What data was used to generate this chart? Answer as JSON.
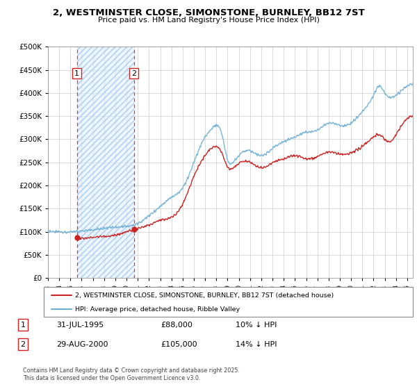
{
  "title": "2, WESTMINSTER CLOSE, SIMONSTONE, BURNLEY, BB12 7ST",
  "subtitle": "Price paid vs. HM Land Registry's House Price Index (HPI)",
  "legend_line1": "2, WESTMINSTER CLOSE, SIMONSTONE, BURNLEY, BB12 7ST (detached house)",
  "legend_line2": "HPI: Average price, detached house, Ribble Valley",
  "footnote": "Contains HM Land Registry data © Crown copyright and database right 2025.\nThis data is licensed under the Open Government Licence v3.0.",
  "sale1_label": "1",
  "sale1_date": "31-JUL-1995",
  "sale1_price": "£88,000",
  "sale1_hpi": "10% ↓ HPI",
  "sale2_label": "2",
  "sale2_date": "29-AUG-2000",
  "sale2_price": "£105,000",
  "sale2_hpi": "14% ↓ HPI",
  "hpi_color": "#6baed6",
  "price_color": "#cc2222",
  "dashed_color": "#cc2222",
  "hatch_fill_color": "#ddeeff",
  "ylim": [
    0,
    500000
  ],
  "yticks": [
    0,
    50000,
    100000,
    150000,
    200000,
    250000,
    300000,
    350000,
    400000,
    450000,
    500000
  ],
  "sale1_x": 1995.58,
  "sale1_y": 88000,
  "sale2_x": 2000.66,
  "sale2_y": 105000,
  "xmin": 1993,
  "xmax": 2025.5
}
